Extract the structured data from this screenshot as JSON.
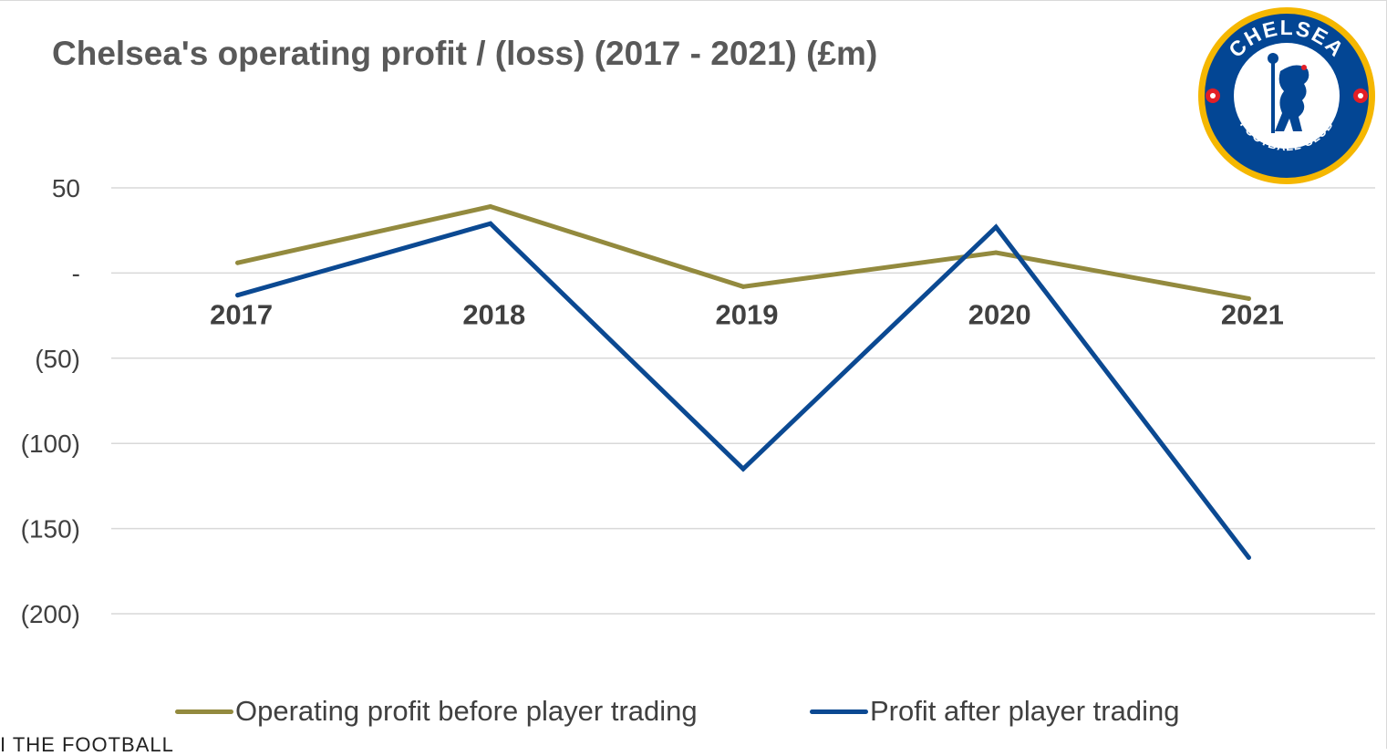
{
  "chart_data": {
    "type": "line",
    "title": "Chelsea's operating profit / (loss) (2017 - 2021) (£m)",
    "xlabel": "",
    "ylabel": "",
    "categories": [
      "2017",
      "2018",
      "2019",
      "2020",
      "2021"
    ],
    "series": [
      {
        "name": "Operating profit before player trading",
        "values": [
          6,
          39,
          -8,
          12,
          -15
        ],
        "color": "#938A3E"
      },
      {
        "name": "Profit after player trading",
        "values": [
          -13,
          29,
          -115,
          27,
          -167
        ],
        "color": "#0B4992"
      }
    ],
    "ylim": [
      -200,
      50
    ],
    "yticks": [
      50,
      0,
      -50,
      -100,
      -150,
      -200
    ],
    "ytick_labels": [
      "50",
      "-",
      "(50)",
      "(100)",
      "(150)",
      "(200)"
    ],
    "grid": true,
    "legend_position": "bottom"
  },
  "logo": {
    "top_text": "CHELSEA",
    "bottom_text": "FOOTBALL CLUB",
    "ring_color": "#F5B700",
    "body_color": "#034694"
  },
  "watermark": "I THE FOOTBALL"
}
